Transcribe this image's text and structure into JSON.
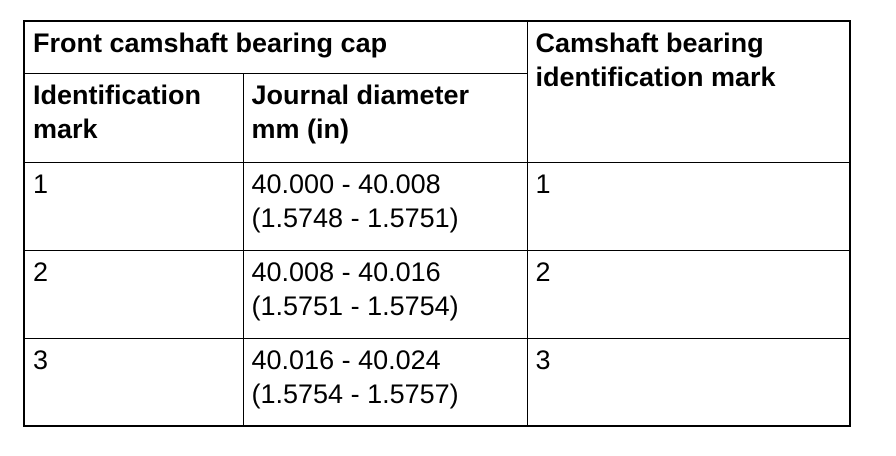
{
  "table": {
    "header": {
      "front_cap_group": "Front camshaft bearing cap",
      "bearing_id_mark": [
        "Camshaft bearing",
        "identification mark"
      ],
      "identification_mark": [
        "Identification",
        "mark"
      ],
      "journal_diameter": [
        "Journal diameter",
        "mm (in)"
      ]
    },
    "rows": [
      {
        "mark": "1",
        "diameter_mm": "40.000 - 40.008",
        "diameter_in": "(1.5748 - 1.5751)",
        "bearing_mark": "1"
      },
      {
        "mark": "2",
        "diameter_mm": "40.008 - 40.016",
        "diameter_in": "(1.5751 - 1.5754)",
        "bearing_mark": "2"
      },
      {
        "mark": "3",
        "diameter_mm": "40.016 - 40.024",
        "diameter_in": "(1.5754 - 1.5757)",
        "bearing_mark": "3"
      }
    ]
  }
}
